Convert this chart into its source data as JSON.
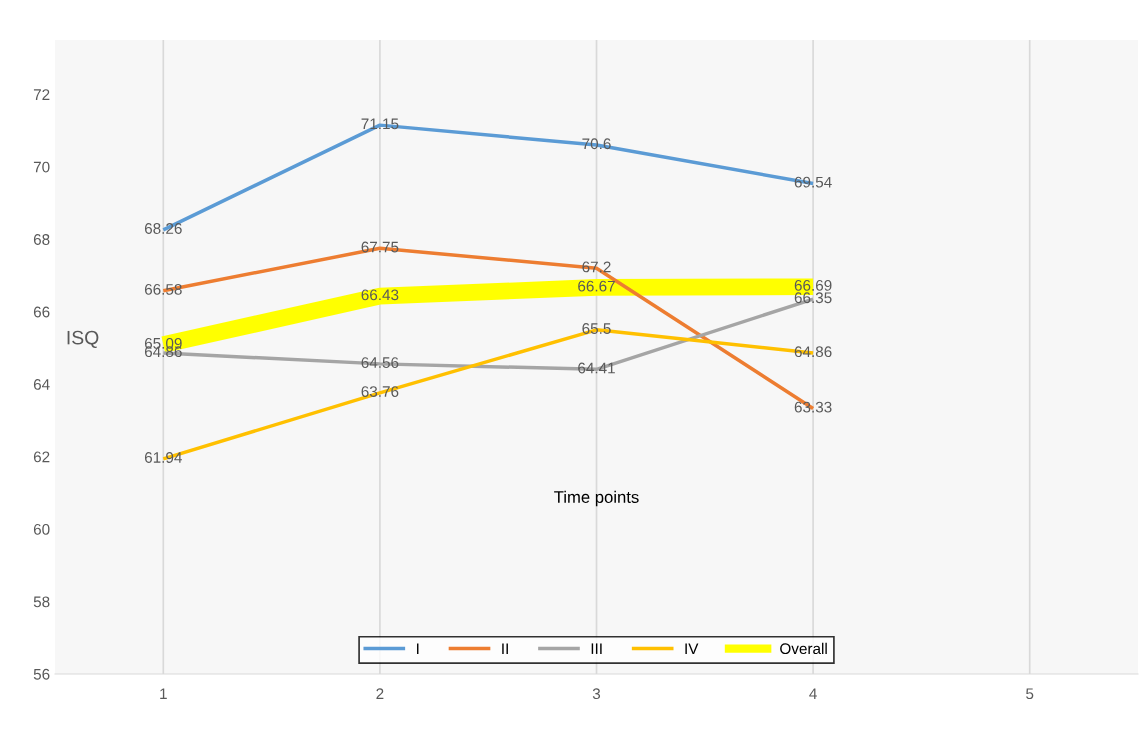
{
  "chart_data": {
    "type": "line",
    "xlabel": "Time points",
    "ylabel": "ISQ",
    "x": [
      1,
      2,
      3,
      4
    ],
    "series": [
      {
        "name": "I",
        "color": "#5b9bd5",
        "values": [
          68.26,
          71.15,
          70.6,
          69.54
        ]
      },
      {
        "name": "II",
        "color": "#ed7d31",
        "values": [
          66.58,
          67.75,
          67.2,
          63.33
        ]
      },
      {
        "name": "III",
        "color": "#a5a5a5",
        "values": [
          64.86,
          64.56,
          64.41,
          66.35
        ]
      },
      {
        "name": "IV",
        "color": "#ffc000",
        "values": [
          61.94,
          63.76,
          65.5,
          64.86
        ]
      },
      {
        "name": "Overall",
        "color": "#ffff00",
        "values": [
          65.09,
          66.43,
          66.67,
          66.69
        ]
      }
    ],
    "xlim": [
      0.5,
      5.5
    ],
    "xticks": [
      1,
      2,
      3,
      4,
      5
    ],
    "ylim": [
      56,
      73.5
    ],
    "yticks": [
      56,
      58,
      60,
      62,
      64,
      66,
      68,
      70,
      72
    ],
    "grid": "x",
    "legend": "bottom",
    "data_labels": true,
    "marker": "none",
    "line_style": "solid"
  }
}
